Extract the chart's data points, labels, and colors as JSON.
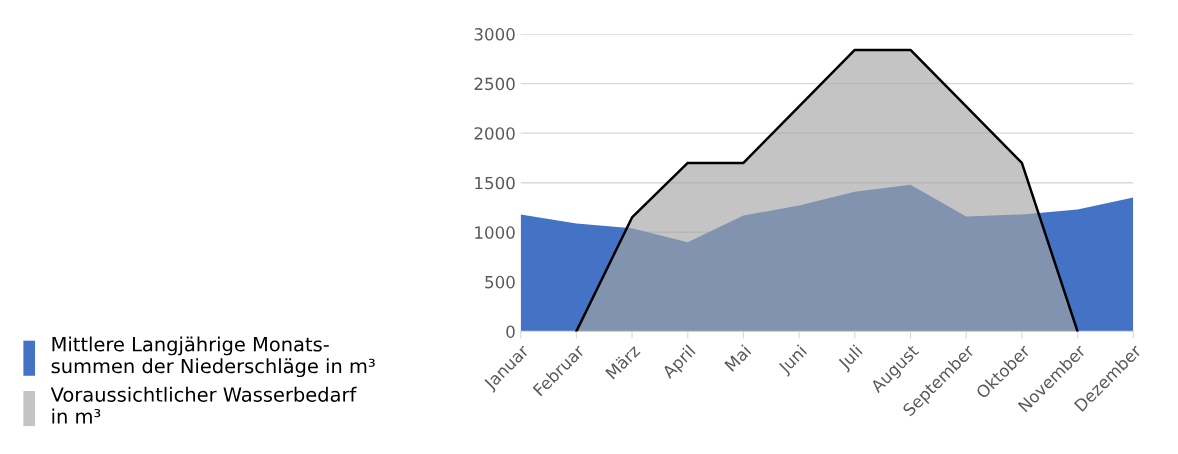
{
  "chart_data": {
    "type": "area",
    "categories": [
      "Januar",
      "Februar",
      "März",
      "April",
      "Mai",
      "Juni",
      "Juli",
      "August",
      "September",
      "Oktober",
      "November",
      "Dezember"
    ],
    "series": [
      {
        "name": "Mittlere Langjährige Monats-\nsummen der Niederschläge in m³",
        "color": "#4472c4",
        "values": [
          1180,
          1090,
          1040,
          900,
          1170,
          1270,
          1410,
          1480,
          1160,
          1180,
          1230,
          1350
        ]
      },
      {
        "name": "Voraussichtlicher Wasserbedarf\nin m³",
        "color": "#a5a5a5",
        "values": [
          null,
          0,
          1150,
          1700,
          1700,
          2270,
          2840,
          2840,
          2270,
          1700,
          0,
          null
        ]
      }
    ],
    "ylim": [
      0,
      3000
    ],
    "yticks": [
      0,
      500,
      1000,
      1500,
      2000,
      2500,
      3000
    ],
    "grid": "y",
    "legend": "left"
  }
}
